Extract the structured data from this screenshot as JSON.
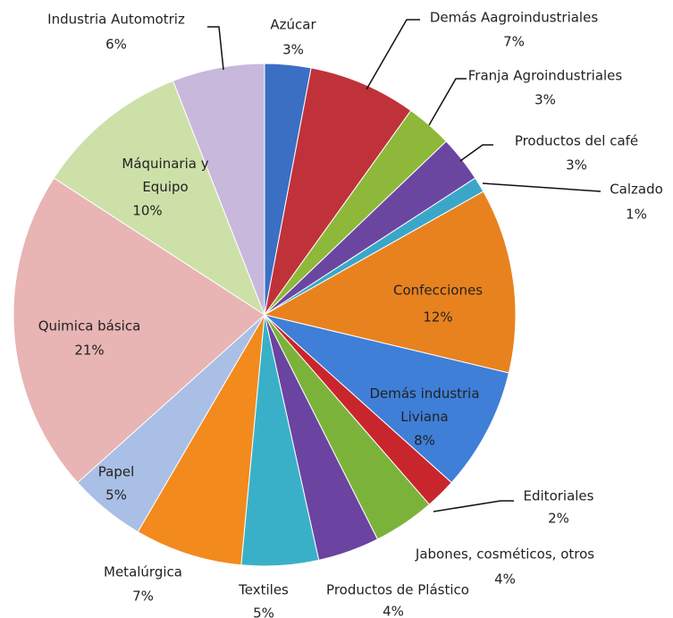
{
  "chart_data": {
    "type": "pie",
    "categories": [
      "Azúcar",
      "Demás Aagroindustriales",
      "Franja Agroindustriales",
      "Productos del café",
      "Calzado",
      "Confecciones",
      "Demás industria Liviana",
      "Editoriales",
      "Jabones, cosméticos, otros",
      "Productos de Plástico",
      "Textiles",
      "Metalúrgica",
      "Papel",
      "Quimica básica",
      "Máquinaria y Equipo",
      "Industria Automotriz"
    ],
    "values": [
      3,
      7,
      3,
      3,
      1,
      12,
      8,
      2,
      4,
      4,
      5,
      7,
      5,
      21,
      10,
      6
    ],
    "value_labels": [
      "3%",
      "7%",
      "3%",
      "3%",
      "1%",
      "12%",
      "8%",
      "2%",
      "4%",
      "4%",
      "5%",
      "7%",
      "5%",
      "21%",
      "10%",
      "6%"
    ],
    "colors": [
      "#3a6fc4",
      "#c0323a",
      "#8db83a",
      "#6b46a0",
      "#3aa7c8",
      "#e8821e",
      "#3f7fd8",
      "#c8262c",
      "#7bb33a",
      "#6a44a0",
      "#3ab0c8",
      "#f28a1e",
      "#a9bfe6",
      "#e8b4b4",
      "#cde0a8",
      "#c8b8dc"
    ]
  }
}
